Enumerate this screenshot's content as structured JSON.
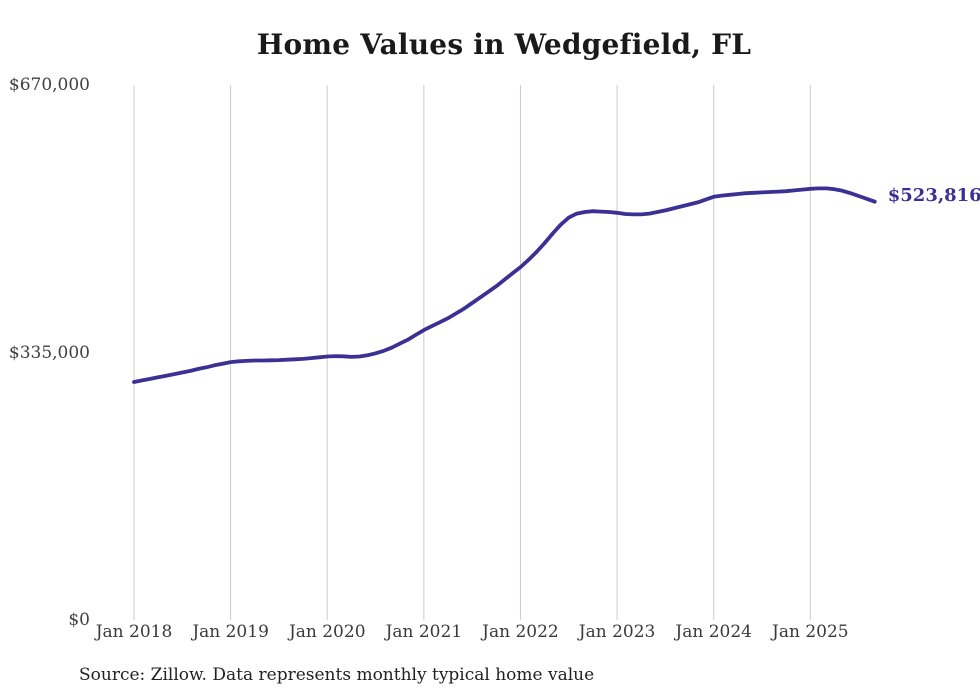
{
  "chart": {
    "title": "Home Values in Wedgefield, FL",
    "end_label": "$523,816"
  },
  "footer": {
    "source": "Source: Zillow. Data represents monthly typical home value"
  },
  "colors": {
    "line": "#3b3195",
    "grid": "#cccccc",
    "axis_text": "#414141",
    "title_text": "#1a1a1a"
  },
  "chart_data": {
    "type": "line",
    "title": "Home Values in Wedgefield, FL",
    "series_name": "Monthly typical home value (Zillow)",
    "ylim": [
      0,
      670000
    ],
    "grid": "vertical-only",
    "legend": "none",
    "y_ticks": [
      {
        "label": "$670,000",
        "value": 670000
      },
      {
        "label": "$335,000",
        "value": 335000
      },
      {
        "label": "$0",
        "value": 0
      }
    ],
    "x_ticks": [
      "Jan 2018",
      "Jan 2019",
      "Jan 2020",
      "Jan 2021",
      "Jan 2022",
      "Jan 2023",
      "Jan 2024",
      "Jan 2025"
    ],
    "last_value": 523816,
    "x": [
      "2018-01",
      "2018-02",
      "2018-03",
      "2018-04",
      "2018-05",
      "2018-06",
      "2018-07",
      "2018-08",
      "2018-09",
      "2018-10",
      "2018-11",
      "2018-12",
      "2019-01",
      "2019-02",
      "2019-03",
      "2019-04",
      "2019-05",
      "2019-06",
      "2019-07",
      "2019-08",
      "2019-09",
      "2019-10",
      "2019-11",
      "2019-12",
      "2020-01",
      "2020-02",
      "2020-03",
      "2020-04",
      "2020-05",
      "2020-06",
      "2020-07",
      "2020-08",
      "2020-09",
      "2020-10",
      "2020-11",
      "2020-12",
      "2021-01",
      "2021-02",
      "2021-03",
      "2021-04",
      "2021-05",
      "2021-06",
      "2021-07",
      "2021-08",
      "2021-09",
      "2021-10",
      "2021-11",
      "2021-12",
      "2022-01",
      "2022-02",
      "2022-03",
      "2022-04",
      "2022-05",
      "2022-06",
      "2022-07",
      "2022-08",
      "2022-09",
      "2022-10",
      "2022-11",
      "2022-12",
      "2023-01",
      "2023-02",
      "2023-03",
      "2023-04",
      "2023-05",
      "2023-06",
      "2023-07",
      "2023-08",
      "2023-09",
      "2023-10",
      "2023-11",
      "2023-12",
      "2024-01",
      "2024-02",
      "2024-03",
      "2024-04",
      "2024-05",
      "2024-06",
      "2024-07",
      "2024-08",
      "2024-09",
      "2024-10",
      "2024-11",
      "2024-12",
      "2025-01",
      "2025-02",
      "2025-03",
      "2025-04",
      "2025-05",
      "2025-06",
      "2025-07",
      "2025-08",
      "2025-09"
    ],
    "values": [
      298000,
      300000,
      302000,
      304000,
      306000,
      308000,
      310000,
      312000,
      314500,
      316500,
      319000,
      321000,
      323000,
      324000,
      324500,
      325000,
      325000,
      325200,
      325500,
      326000,
      326500,
      327000,
      328000,
      329000,
      330000,
      330500,
      330200,
      329500,
      330000,
      331500,
      334000,
      337000,
      341000,
      346000,
      351000,
      357000,
      363000,
      368000,
      373000,
      378000,
      384000,
      390000,
      397000,
      404000,
      411000,
      418000,
      426000,
      434000,
      442000,
      451000,
      461000,
      472000,
      484000,
      495000,
      504000,
      509000,
      511000,
      512000,
      511500,
      511000,
      510000,
      508500,
      508000,
      508000,
      509000,
      511000,
      513000,
      515500,
      518000,
      520500,
      523000,
      526500,
      530000,
      531500,
      532500,
      533500,
      534500,
      535000,
      535500,
      536000,
      536500,
      537000,
      538000,
      539000,
      540000,
      540500,
      540500,
      539500,
      537500,
      534500,
      531000,
      527500,
      523816
    ]
  }
}
